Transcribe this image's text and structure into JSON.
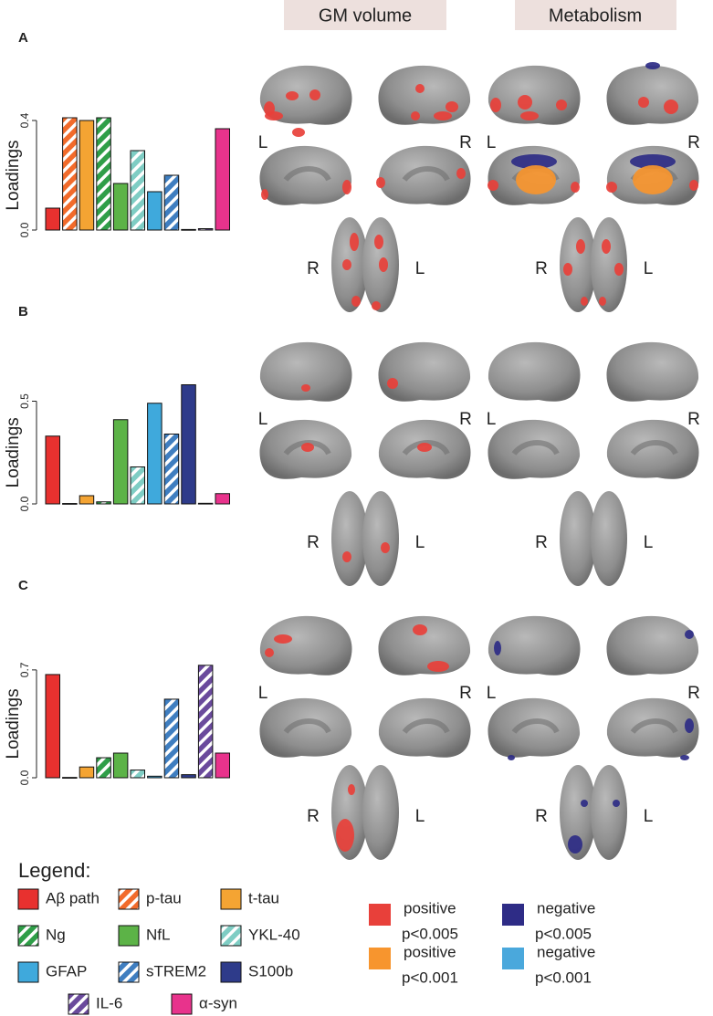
{
  "column_headers": [
    "GM volume",
    "Metabolism"
  ],
  "hemisphere": {
    "left": "L",
    "right": "R"
  },
  "chart_data": [
    {
      "type": "bar",
      "panel": "A",
      "ylabel": "Loadings",
      "categories": [
        null,
        null,
        null,
        null,
        null,
        null,
        null,
        null,
        null,
        null,
        null
      ],
      "values": [
        0.08,
        0.41,
        0.4,
        0.41,
        0.17,
        0.29,
        0.14,
        0.2,
        0.002,
        0.005,
        0.37
      ],
      "colors": [
        "#e8312f",
        "#f26b2b",
        "#f4a433",
        "#2f9e48",
        "#5cb347",
        "#7fcdc4",
        "#3fa9dc",
        "#3f7ec0",
        "#2e3b8a",
        "#6a4a9c",
        "#e8338c"
      ],
      "hatch": [
        false,
        true,
        false,
        true,
        false,
        true,
        false,
        true,
        false,
        true,
        false
      ],
      "ylim": [
        0,
        0.45
      ],
      "yticks": [
        {
          "value": 0,
          "label": "0.0"
        },
        {
          "value": 0.4,
          "label": "0.4"
        }
      ]
    },
    {
      "type": "bar",
      "panel": "B",
      "ylabel": "Loadings",
      "categories": [
        null,
        null,
        null,
        null,
        null,
        null,
        null,
        null,
        null,
        null,
        null
      ],
      "values": [
        0.33,
        0.002,
        0.04,
        0.01,
        0.41,
        0.18,
        0.49,
        0.34,
        0.58,
        0.003,
        0.05
      ],
      "colors": [
        "#e8312f",
        "#f26b2b",
        "#f4a433",
        "#2f9e48",
        "#5cb347",
        "#7fcdc4",
        "#3fa9dc",
        "#3f7ec0",
        "#2e3b8a",
        "#6a4a9c",
        "#e8338c"
      ],
      "hatch": [
        false,
        true,
        false,
        true,
        false,
        true,
        false,
        true,
        false,
        true,
        false
      ],
      "ylim": [
        0,
        0.6
      ],
      "yticks": [
        {
          "value": 0,
          "label": "0.0"
        },
        0.5
      ]
    },
    {
      "type": "bar",
      "panel": "C",
      "ylabel": "Loadings",
      "categories": [
        null,
        null,
        null,
        null,
        null,
        null,
        null,
        null,
        null,
        null,
        null
      ],
      "values": [
        0.67,
        0.002,
        0.07,
        0.13,
        0.16,
        0.05,
        0.01,
        0.51,
        0.02,
        0.73,
        0.16
      ],
      "colors": [
        "#e8312f",
        "#f26b2b",
        "#f4a433",
        "#2f9e48",
        "#5cb347",
        "#7fcdc4",
        "#3fa9dc",
        "#3f7ec0",
        "#2e3b8a",
        "#6a4a9c",
        "#e8338c"
      ],
      "hatch": [
        false,
        true,
        false,
        true,
        false,
        true,
        false,
        true,
        false,
        true,
        false
      ],
      "ylim": [
        0,
        0.8
      ],
      "yticks": [
        {
          "value": 0,
          "label": "0.0"
        },
        0.7
      ]
    }
  ],
  "legend": {
    "title": "Legend:",
    "items": [
      {
        "name": "Aβ path",
        "color": "#e8312f",
        "hatch": false
      },
      {
        "name": "p-tau",
        "color": "#f26b2b",
        "hatch": true
      },
      {
        "name": "t-tau",
        "color": "#f4a433",
        "hatch": false
      },
      {
        "name": "Ng",
        "color": "#2f9e48",
        "hatch": true
      },
      {
        "name": "NfL",
        "color": "#5cb347",
        "hatch": false
      },
      {
        "name": "YKL-40",
        "color": "#7fcdc4",
        "hatch": true
      },
      {
        "name": "GFAP",
        "color": "#3fa9dc",
        "hatch": false
      },
      {
        "name": "sTREM2",
        "color": "#3f7ec0",
        "hatch": true
      },
      {
        "name": "S100b",
        "color": "#2e3b8a",
        "hatch": false
      },
      {
        "name": "IL-6",
        "color": "#6a4a9c",
        "hatch": true
      },
      {
        "name": "α-syn",
        "color": "#e8338c",
        "hatch": false
      }
    ]
  },
  "significance_legend": [
    {
      "direction": "positive",
      "threshold": "p<0.005",
      "color": "#e8403a"
    },
    {
      "direction": "positive",
      "threshold": "p<0.001",
      "color": "#f7952e"
    },
    {
      "direction": "negative",
      "threshold": "p<0.005",
      "color": "#2e2c86"
    },
    {
      "direction": "negative",
      "threshold": "p<0.001",
      "color": "#4aa8dc"
    }
  ]
}
